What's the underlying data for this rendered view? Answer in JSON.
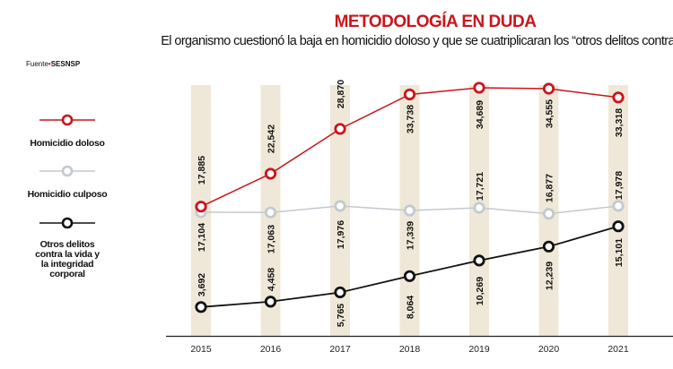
{
  "chart_data": {
    "type": "line",
    "title": "METODOLOGÍA EN DUDA",
    "subtitle": "El organismo cuestionó la baja en homicidio doloso y que se cuatriplicaran los “otros delitos contra la vida”.",
    "source_label": "Fuente",
    "source_value": "SESNSP",
    "categories": [
      "2015",
      "2016",
      "2017",
      "2018",
      "2019",
      "2020",
      "2021"
    ],
    "ylim": [
      0,
      37000
    ],
    "grid": false,
    "legend_position": "left",
    "series": [
      {
        "name": "Homicidio doloso",
        "color": "#c8161d",
        "values": [
          17885,
          22542,
          28870,
          33738,
          34689,
          34555,
          33318
        ],
        "labels": [
          "17,885",
          "22,542",
          "28,870",
          "33,738",
          "34,689",
          "34,555",
          "33,318"
        ]
      },
      {
        "name": "Homicidio culposo",
        "color": "#c3c9d0",
        "values": [
          17104,
          17063,
          17976,
          17339,
          17721,
          16877,
          17978
        ],
        "labels": [
          "17,104",
          "17,063",
          "17,976",
          "17,339",
          "17,721",
          "16,877",
          "17,978"
        ]
      },
      {
        "name": "Otros delitos contra la vida y la integridad corporal",
        "color": "#111111",
        "values": [
          3692,
          4458,
          5765,
          8064,
          10269,
          12239,
          15101
        ],
        "labels": [
          "3,692",
          "4,458",
          "5,765",
          "8,064",
          "10,269",
          "12,239",
          "15,101"
        ]
      }
    ],
    "column_color": "#efe8d8"
  }
}
